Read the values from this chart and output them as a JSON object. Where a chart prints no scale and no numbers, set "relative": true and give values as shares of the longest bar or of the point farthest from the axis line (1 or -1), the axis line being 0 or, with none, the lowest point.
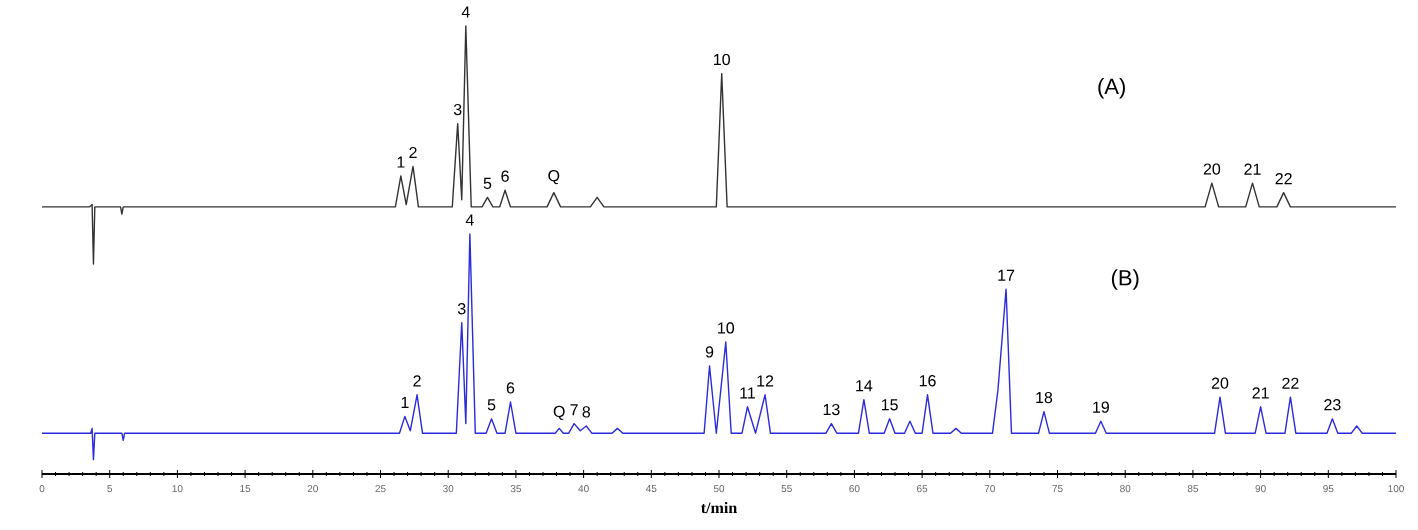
{
  "chart_data": [
    {
      "type": "line",
      "relative": true,
      "xlim": [
        0,
        100
      ],
      "tick_labels": false,
      "series": [
        {
          "color": "#333333",
          "x": [
            0,
            3.5,
            3.7,
            3.8,
            3.9,
            5.8,
            5.9,
            6.0,
            26.1,
            26.5,
            26.9,
            27.4,
            27.8,
            30.3,
            30.7,
            31.0,
            31.3,
            31.7,
            32.5,
            32.9,
            33.3,
            33.8,
            34.2,
            34.6,
            37.3,
            37.8,
            38.3,
            40.5,
            41.0,
            41.5,
            49.8,
            50.2,
            50.6,
            85.9,
            86.4,
            86.9,
            88.9,
            89.4,
            89.9,
            91.2,
            91.7,
            92.2,
            100
          ],
          "values": [
            0.24,
            0.24,
            0.25,
            0,
            0.24,
            0.24,
            0.21,
            0.24,
            0.24,
            0.37,
            0.25,
            0.41,
            0.24,
            0.24,
            0.59,
            0.27,
            1.0,
            0.24,
            0.24,
            0.28,
            0.24,
            0.24,
            0.31,
            0.24,
            0.24,
            0.3,
            0.24,
            0.24,
            0.28,
            0.24,
            0.24,
            0.8,
            0.24,
            0.24,
            0.34,
            0.24,
            0.24,
            0.34,
            0.24,
            0.24,
            0.3,
            0.24,
            0.24
          ]
        }
      ],
      "annotations": [
        "(A)",
        {
          "text": "1",
          "x": 26.5,
          "y": 0.37
        },
        {
          "text": "2",
          "x": 27.4,
          "y": 0.41
        },
        {
          "text": "3",
          "x": 30.7,
          "y": 0.59
        },
        {
          "text": "4",
          "x": 31.3,
          "y": 1.0
        },
        {
          "text": "5",
          "x": 32.9,
          "y": 0.28
        },
        {
          "text": "6",
          "x": 34.2,
          "y": 0.31
        },
        {
          "text": "Q",
          "x": 37.8,
          "y": 0.3
        },
        {
          "text": "10",
          "x": 50.2,
          "y": 0.8
        },
        {
          "text": "20",
          "x": 86.4,
          "y": 0.34
        },
        {
          "text": "21",
          "x": 89.4,
          "y": 0.34
        },
        {
          "text": "22",
          "x": 91.7,
          "y": 0.3
        }
      ]
    },
    {
      "type": "line",
      "relative": true,
      "xlim": [
        0,
        100
      ],
      "tick_labels": "x",
      "xlabel": "t/min",
      "xticks": [
        0,
        5,
        10,
        15,
        20,
        25,
        30,
        35,
        40,
        45,
        50,
        55,
        60,
        65,
        70,
        75,
        80,
        85,
        90,
        95,
        100
      ],
      "series": [
        {
          "color": "#2b2bdb",
          "x": [
            0,
            3.6,
            3.7,
            3.8,
            3.9,
            5.9,
            6.0,
            6.1,
            26.4,
            26.8,
            27.2,
            27.7,
            28.1,
            30.6,
            31.0,
            31.3,
            31.6,
            32.0,
            32.8,
            33.2,
            33.6,
            34.2,
            34.6,
            35.0,
            37.9,
            38.2,
            38.5,
            38.9,
            39.3,
            39.75,
            40.2,
            40.6,
            42.1,
            42.5,
            42.9,
            48.9,
            49.3,
            49.8,
            50.5,
            50.9,
            51.7,
            52.1,
            52.7,
            53.4,
            53.8,
            57.9,
            58.3,
            58.7,
            60.3,
            60.7,
            61.1,
            62.2,
            62.6,
            63.0,
            63.7,
            64.1,
            64.5,
            65.0,
            65.4,
            65.8,
            67.1,
            67.5,
            67.9,
            70.2,
            70.6,
            71.2,
            71.6,
            73.6,
            74.0,
            74.4,
            77.8,
            78.2,
            78.6,
            86.6,
            87.0,
            87.4,
            89.6,
            90.0,
            90.4,
            91.8,
            92.2,
            92.6,
            94.9,
            95.3,
            95.7,
            96.7,
            97.1,
            97.5,
            100
          ],
          "values": [
            0.17,
            0.17,
            0.19,
            0.06,
            0.17,
            0.17,
            0.14,
            0.17,
            0.17,
            0.24,
            0.18,
            0.33,
            0.17,
            0.17,
            0.63,
            0.21,
            1.0,
            0.17,
            0.17,
            0.23,
            0.17,
            0.17,
            0.3,
            0.17,
            0.17,
            0.19,
            0.17,
            0.17,
            0.21,
            0.18,
            0.2,
            0.17,
            0.17,
            0.19,
            0.17,
            0.17,
            0.45,
            0.17,
            0.55,
            0.17,
            0.17,
            0.28,
            0.17,
            0.33,
            0.17,
            0.17,
            0.21,
            0.17,
            0.17,
            0.31,
            0.17,
            0.17,
            0.23,
            0.17,
            0.17,
            0.22,
            0.17,
            0.17,
            0.33,
            0.17,
            0.17,
            0.19,
            0.17,
            0.17,
            0.35,
            0.77,
            0.17,
            0.17,
            0.26,
            0.17,
            0.17,
            0.22,
            0.17,
            0.17,
            0.32,
            0.17,
            0.17,
            0.28,
            0.17,
            0.17,
            0.32,
            0.17,
            0.17,
            0.23,
            0.17,
            0.17,
            0.2,
            0.17,
            0.17
          ]
        }
      ],
      "annotations": [
        "(B)",
        {
          "text": "1",
          "x": 26.8,
          "y": 0.24
        },
        {
          "text": "2",
          "x": 27.7,
          "y": 0.33
        },
        {
          "text": "3",
          "x": 31.0,
          "y": 0.63
        },
        {
          "text": "4",
          "x": 31.6,
          "y": 1.0
        },
        {
          "text": "5",
          "x": 33.2,
          "y": 0.23
        },
        {
          "text": "6",
          "x": 34.6,
          "y": 0.3
        },
        {
          "text": "Q",
          "x": 38.2,
          "y": 0.19
        },
        {
          "text": "7",
          "x": 39.3,
          "y": 0.21
        },
        {
          "text": "8",
          "x": 40.2,
          "y": 0.2
        },
        {
          "text": "9",
          "x": 49.3,
          "y": 0.45
        },
        {
          "text": "10",
          "x": 50.5,
          "y": 0.55
        },
        {
          "text": "11",
          "x": 52.1,
          "y": 0.28
        },
        {
          "text": "12",
          "x": 53.4,
          "y": 0.33
        },
        {
          "text": "13",
          "x": 58.3,
          "y": 0.21
        },
        {
          "text": "14",
          "x": 60.7,
          "y": 0.31
        },
        {
          "text": "15",
          "x": 62.6,
          "y": 0.23
        },
        {
          "text": "16",
          "x": 65.4,
          "y": 0.33
        },
        {
          "text": "17",
          "x": 71.2,
          "y": 0.77
        },
        {
          "text": "18",
          "x": 74.0,
          "y": 0.26
        },
        {
          "text": "19",
          "x": 78.2,
          "y": 0.22
        },
        {
          "text": "20",
          "x": 87.0,
          "y": 0.32
        },
        {
          "text": "21",
          "x": 90.0,
          "y": 0.28
        },
        {
          "text": "22",
          "x": 92.2,
          "y": 0.32
        },
        {
          "text": "23",
          "x": 95.3,
          "y": 0.23
        }
      ]
    }
  ]
}
